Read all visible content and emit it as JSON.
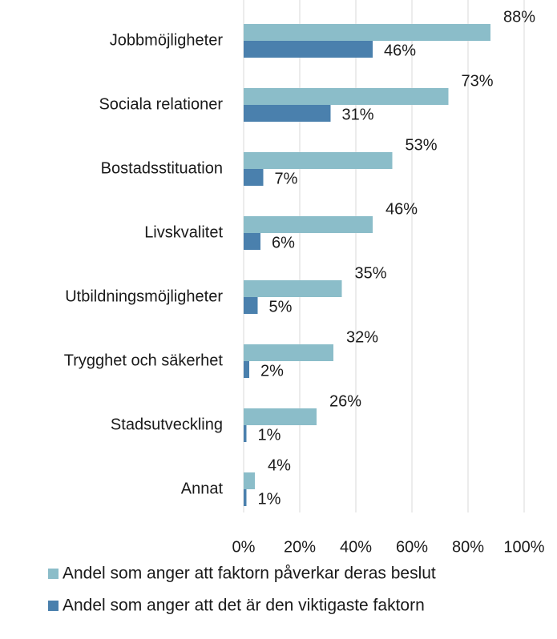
{
  "chart_data": {
    "type": "hbar",
    "categories": [
      "Jobbmöjligheter",
      "Sociala relationer",
      "Bostadsstituation",
      "Livskvalitet",
      "Utbildningsmöjligheter",
      "Trygghet och säkerhet",
      "Stadsutveckling",
      "Annat"
    ],
    "series": [
      {
        "name": "Andel som anger att faktorn påverkar deras beslut",
        "color": "#8bbdc9",
        "values": [
          88,
          73,
          53,
          46,
          35,
          32,
          26,
          4
        ],
        "value_labels": [
          "88%",
          "73%",
          "53%",
          "46%",
          "35%",
          "32%",
          "26%",
          "4%"
        ]
      },
      {
        "name": "Andel som anger att det är den viktigaste faktorn",
        "color": "#4a80ad",
        "values": [
          46,
          31,
          7,
          6,
          5,
          2,
          1,
          1
        ],
        "value_labels": [
          "46%",
          "31%",
          "7%",
          "6%",
          "5%",
          "2%",
          "1%",
          "1%"
        ]
      }
    ],
    "xlim": [
      0,
      100
    ],
    "xticks": [
      {
        "value": 0,
        "label": "0%"
      },
      {
        "value": 20,
        "label": "20%"
      },
      {
        "value": 40,
        "label": "40%"
      },
      {
        "value": 60,
        "label": "60%"
      },
      {
        "value": 80,
        "label": "80%"
      },
      {
        "value": 100,
        "label": "100%"
      }
    ],
    "grid": true
  }
}
